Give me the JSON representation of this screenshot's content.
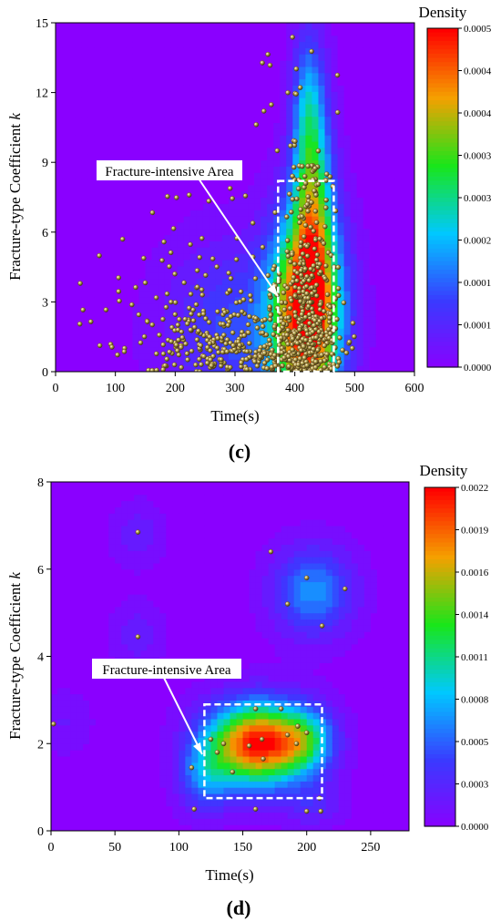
{
  "colorscale": [
    "#8a00ff",
    "#3a3aff",
    "#00c8ff",
    "#19e61a",
    "#f5a000",
    "#ff0000"
  ],
  "chart_data": [
    {
      "type": "heatmap",
      "panel_label": "(c)",
      "xlabel": "Time(s)",
      "ylabel_main": "Fracture-type Coefficient ",
      "ylabel_italic": "k",
      "xlim": [
        0,
        600
      ],
      "ylim": [
        0,
        15
      ],
      "xticks": [
        0,
        100,
        200,
        300,
        400,
        500,
        600
      ],
      "yticks": [
        0,
        3,
        6,
        9,
        12,
        15
      ],
      "colorbar": {
        "title": "Density",
        "range": [
          0,
          0.0005
        ],
        "tick_labels": [
          "0.0005",
          "0.0004",
          "0.0004",
          "0.0003",
          "0.0003",
          "0.0002",
          "0.0001",
          "0.0001",
          "0.0000"
        ]
      },
      "annotation": {
        "text": "Fracture-intensive Area",
        "box": {
          "x": [
            372,
            465
          ],
          "y": [
            0,
            8.2
          ]
        }
      },
      "density_blobs": [
        {
          "x": 420,
          "y": 2.5,
          "sx": 40,
          "sy": 3.0,
          "w": 1.0
        },
        {
          "x": 430,
          "y": 7.5,
          "sx": 22,
          "sy": 3.5,
          "w": 0.5
        },
        {
          "x": 300,
          "y": 1.8,
          "sx": 80,
          "sy": 2.6,
          "w": 0.22
        },
        {
          "x": 420,
          "y": 11.5,
          "sx": 18,
          "sy": 2.2,
          "w": 0.22
        }
      ]
    },
    {
      "type": "heatmap",
      "panel_label": "(d)",
      "xlabel": "Time(s)",
      "ylabel_main": "Fracture-type Coefficient ",
      "ylabel_italic": "k",
      "xlim": [
        0,
        280
      ],
      "ylim": [
        0,
        8
      ],
      "xticks": [
        0,
        50,
        100,
        150,
        200,
        250
      ],
      "yticks": [
        0,
        2,
        4,
        6,
        8
      ],
      "colorbar": {
        "title": "Density",
        "range": [
          0,
          0.0022
        ],
        "tick_labels": [
          "0.0022",
          "0.0019",
          "0.0016",
          "0.0014",
          "0.0011",
          "0.0008",
          "0.0005",
          "0.0003",
          "0.0000"
        ]
      },
      "annotation": {
        "text": "Fracture-intensive Area",
        "box": {
          "x": [
            120,
            212
          ],
          "y": [
            0.75,
            2.9
          ]
        }
      },
      "density_blobs": [
        {
          "x": 162,
          "y": 2.0,
          "sx": 28,
          "sy": 0.65,
          "w": 1.0
        },
        {
          "x": 200,
          "y": 2.1,
          "sx": 15,
          "sy": 0.5,
          "w": 0.3
        },
        {
          "x": 120,
          "y": 1.2,
          "sx": 14,
          "sy": 0.55,
          "w": 0.25
        },
        {
          "x": 205,
          "y": 5.5,
          "sx": 22,
          "sy": 0.7,
          "w": 0.32
        },
        {
          "x": 68,
          "y": 6.8,
          "sx": 14,
          "sy": 0.5,
          "w": 0.1
        },
        {
          "x": 68,
          "y": 4.5,
          "sx": 14,
          "sy": 0.5,
          "w": 0.1
        },
        {
          "x": 205,
          "y": 0.6,
          "sx": 16,
          "sy": 0.35,
          "w": 0.12
        },
        {
          "x": 10,
          "y": 2.5,
          "sx": 15,
          "sy": 0.5,
          "w": 0.07
        }
      ],
      "points": [
        {
          "x": 2,
          "y": 2.45
        },
        {
          "x": 68,
          "y": 6.85
        },
        {
          "x": 68,
          "y": 4.45
        },
        {
          "x": 172,
          "y": 6.4
        },
        {
          "x": 200,
          "y": 5.8
        },
        {
          "x": 230,
          "y": 5.55
        },
        {
          "x": 185,
          "y": 5.2
        },
        {
          "x": 212,
          "y": 4.7
        },
        {
          "x": 110,
          "y": 1.45
        },
        {
          "x": 112,
          "y": 0.5
        },
        {
          "x": 130,
          "y": 1.8
        },
        {
          "x": 135,
          "y": 2.0
        },
        {
          "x": 142,
          "y": 1.35
        },
        {
          "x": 155,
          "y": 1.95
        },
        {
          "x": 165,
          "y": 2.1
        },
        {
          "x": 166,
          "y": 1.65
        },
        {
          "x": 180,
          "y": 2.8
        },
        {
          "x": 185,
          "y": 2.2
        },
        {
          "x": 192,
          "y": 2.0
        },
        {
          "x": 193,
          "y": 2.4
        },
        {
          "x": 200,
          "y": 2.25
        },
        {
          "x": 210,
          "y": 0.75
        },
        {
          "x": 211,
          "y": 0.45
        },
        {
          "x": 200,
          "y": 0.45
        },
        {
          "x": 160,
          "y": 0.5
        },
        {
          "x": 160,
          "y": 2.8
        },
        {
          "x": 125,
          "y": 2.1
        }
      ]
    }
  ]
}
